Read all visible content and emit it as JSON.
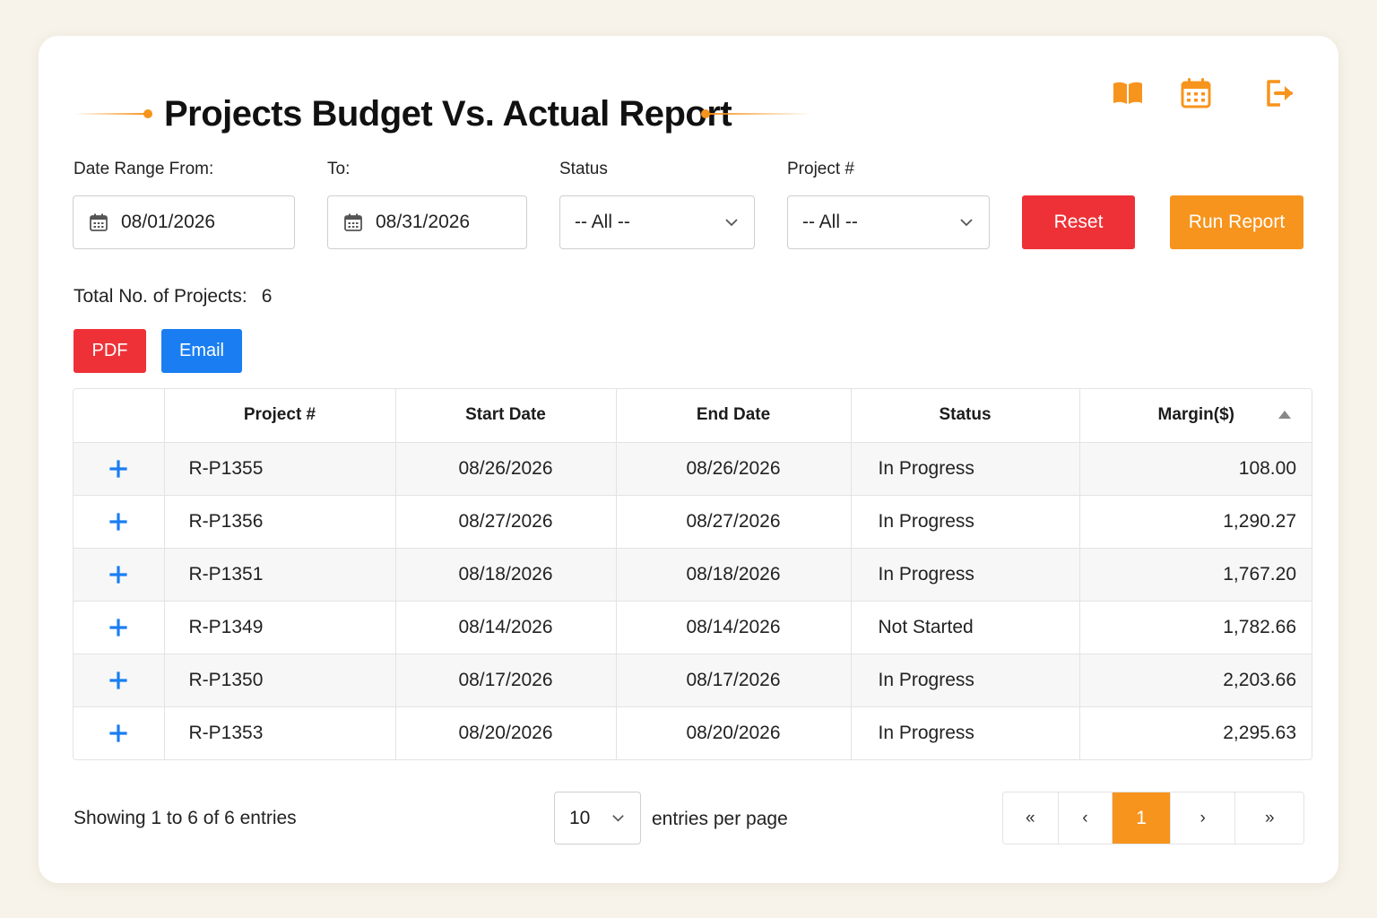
{
  "header": {
    "title": "Projects Budget Vs. Actual Report",
    "icons": [
      "book-icon",
      "calendar-icon",
      "logout-icon"
    ],
    "accent_color": "#f7941d"
  },
  "filters": {
    "date_from_label": "Date Range From:",
    "date_from_value": "08/01/2026",
    "date_to_label": "To:",
    "date_to_value": "08/31/2026",
    "status_label": "Status",
    "status_value": "-- All --",
    "project_label": "Project #",
    "project_value": "-- All --",
    "reset_label": "Reset",
    "run_label": "Run Report"
  },
  "summary": {
    "total_label": "Total No. of Projects:",
    "total_value": "6"
  },
  "export": {
    "pdf_label": "PDF",
    "email_label": "Email"
  },
  "table": {
    "columns": [
      "",
      "Project #",
      "Start Date",
      "End Date",
      "Status",
      "Margin($)"
    ],
    "sort_column": "Margin($)",
    "sort_direction": "ascending",
    "rows": [
      {
        "project": "R-P1355",
        "start": "08/26/2026",
        "end": "08/26/2026",
        "status": "In Progress",
        "margin": "108.00"
      },
      {
        "project": "R-P1356",
        "start": "08/27/2026",
        "end": "08/27/2026",
        "status": "In Progress",
        "margin": "1,290.27"
      },
      {
        "project": "R-P1351",
        "start": "08/18/2026",
        "end": "08/18/2026",
        "status": "In Progress",
        "margin": "1,767.20"
      },
      {
        "project": "R-P1349",
        "start": "08/14/2026",
        "end": "08/14/2026",
        "status": "Not Started",
        "margin": "1,782.66"
      },
      {
        "project": "R-P1350",
        "start": "08/17/2026",
        "end": "08/17/2026",
        "status": "In Progress",
        "margin": "2,203.66"
      },
      {
        "project": "R-P1353",
        "start": "08/20/2026",
        "end": "08/20/2026",
        "status": "In Progress",
        "margin": "2,295.63"
      }
    ]
  },
  "footer": {
    "showing_text": "Showing 1 to 6 of 6 entries",
    "per_page_value": "10",
    "per_page_label": "entries per page",
    "pager": {
      "first": "«",
      "prev": "‹",
      "current": "1",
      "next": "›",
      "last": "»"
    }
  }
}
